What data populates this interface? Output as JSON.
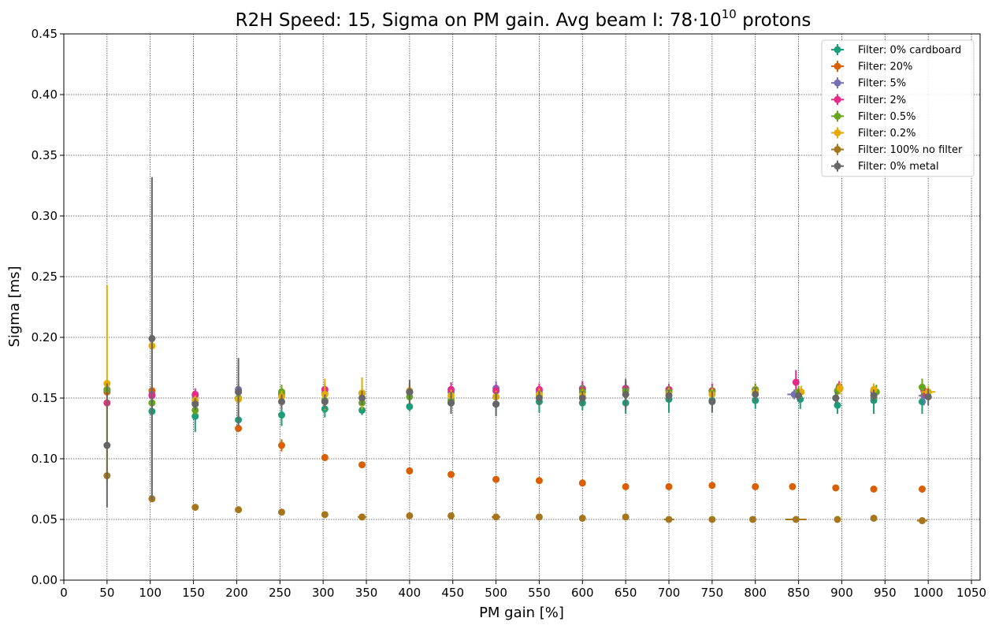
{
  "chart_data": {
    "type": "scatter",
    "title": {
      "main": "R2H Speed: 15, Sigma on PM gain. Avg beam I: 78·10",
      "superscript": "10",
      "suffix": " protons"
    },
    "xlabel": "PM gain [%]",
    "ylabel": "Sigma [ms]",
    "xlim": [
      0,
      1060
    ],
    "ylim": [
      0,
      0.45
    ],
    "xticks": [
      0,
      50,
      100,
      150,
      200,
      250,
      300,
      350,
      400,
      450,
      500,
      550,
      600,
      650,
      700,
      750,
      800,
      850,
      900,
      950,
      1000,
      1050
    ],
    "yticks": [
      0.0,
      0.05,
      0.1,
      0.15,
      0.2,
      0.25,
      0.3,
      0.35,
      0.4,
      0.45
    ],
    "grid": true,
    "legend_position": "top-right",
    "series": [
      {
        "name": "Filter: 0% cardboard",
        "color": "#1b9e77",
        "points": [
          {
            "x": 50,
            "y": 0.156,
            "yerr": 0.004
          },
          {
            "x": 102,
            "y": 0.139,
            "yerr": 0.003
          },
          {
            "x": 152,
            "y": 0.135,
            "yerr": 0.013
          },
          {
            "x": 202,
            "y": 0.132,
            "yerr": 0.01
          },
          {
            "x": 252,
            "y": 0.136,
            "yerr": 0.009
          },
          {
            "x": 302,
            "y": 0.141,
            "yerr": 0.007
          },
          {
            "x": 345,
            "y": 0.14,
            "yerr": 0.004
          },
          {
            "x": 400,
            "y": 0.143,
            "yerr": 0.004
          },
          {
            "x": 448,
            "y": 0.146,
            "yerr": 0.006
          },
          {
            "x": 500,
            "y": 0.145,
            "yerr": 0.009
          },
          {
            "x": 550,
            "y": 0.147,
            "yerr": 0.009
          },
          {
            "x": 600,
            "y": 0.146,
            "yerr": 0.006
          },
          {
            "x": 650,
            "y": 0.146,
            "yerr": 0.009
          },
          {
            "x": 700,
            "y": 0.149,
            "yerr": 0.011
          },
          {
            "x": 750,
            "y": 0.148,
            "yerr": 0.009
          },
          {
            "x": 800,
            "y": 0.148,
            "yerr": 0.007
          },
          {
            "x": 852,
            "y": 0.149,
            "yerr": 0.008
          },
          {
            "x": 895,
            "y": 0.144,
            "yerr": 0.007
          },
          {
            "x": 937,
            "y": 0.148,
            "yerr": 0.011
          },
          {
            "x": 993,
            "y": 0.147,
            "yerr": 0.01
          }
        ]
      },
      {
        "name": "Filter: 20%",
        "color": "#d95f02",
        "points": [
          {
            "x": 50,
            "y": 0.155,
            "yerr": 0.002
          },
          {
            "x": 102,
            "y": 0.156,
            "yerr": 0.002
          },
          {
            "x": 152,
            "y": 0.146,
            "yerr": 0.002
          },
          {
            "x": 202,
            "y": 0.125,
            "yerr": 0.003
          },
          {
            "x": 252,
            "y": 0.111,
            "yerr": 0.005
          },
          {
            "x": 302,
            "y": 0.101,
            "yerr": 0.003
          },
          {
            "x": 345,
            "y": 0.095,
            "yerr": 0.002
          },
          {
            "x": 400,
            "y": 0.09,
            "yerr": 0.002
          },
          {
            "x": 448,
            "y": 0.087,
            "yerr": 0.002
          },
          {
            "x": 500,
            "y": 0.083,
            "yerr": 0.002
          },
          {
            "x": 550,
            "y": 0.082,
            "yerr": 0.002
          },
          {
            "x": 600,
            "y": 0.08,
            "yerr": 0.002
          },
          {
            "x": 650,
            "y": 0.077,
            "yerr": 0.002
          },
          {
            "x": 700,
            "y": 0.077,
            "yerr": 0.002
          },
          {
            "x": 750,
            "y": 0.078,
            "yerr": 0.002
          },
          {
            "x": 800,
            "y": 0.077,
            "yerr": 0.002
          },
          {
            "x": 843,
            "y": 0.077,
            "yerr": 0.002
          },
          {
            "x": 893,
            "y": 0.076,
            "yerr": 0.002
          },
          {
            "x": 937,
            "y": 0.075,
            "yerr": 0.002
          },
          {
            "x": 993,
            "y": 0.075,
            "yerr": 0.003
          }
        ]
      },
      {
        "name": "Filter: 5%",
        "color": "#7570b3",
        "points": [
          {
            "x": 50,
            "y": 0.157,
            "yerr": 0.004
          },
          {
            "x": 102,
            "y": 0.153,
            "yerr": 0.004
          },
          {
            "x": 152,
            "y": 0.152,
            "yerr": 0.004
          },
          {
            "x": 202,
            "y": 0.157,
            "yerr": 0.005
          },
          {
            "x": 252,
            "y": 0.155,
            "yerr": 0.005
          },
          {
            "x": 302,
            "y": 0.154,
            "yerr": 0.008
          },
          {
            "x": 345,
            "y": 0.154,
            "yerr": 0.006
          },
          {
            "x": 400,
            "y": 0.155,
            "yerr": 0.007
          },
          {
            "x": 448,
            "y": 0.155,
            "yerr": 0.007
          },
          {
            "x": 500,
            "y": 0.158,
            "yerr": 0.006
          },
          {
            "x": 550,
            "y": 0.155,
            "yerr": 0.005
          },
          {
            "x": 600,
            "y": 0.158,
            "yerr": 0.006
          },
          {
            "x": 650,
            "y": 0.158,
            "yerr": 0.006
          },
          {
            "x": 700,
            "y": 0.157,
            "yerr": 0.005
          },
          {
            "x": 750,
            "y": 0.156,
            "yerr": 0.005
          },
          {
            "x": 800,
            "y": 0.157,
            "yerr": 0.005
          },
          {
            "x": 845,
            "y": 0.153,
            "yerr": 0.004,
            "xerr": 8
          },
          {
            "x": 897,
            "y": 0.158,
            "yerr": 0.005
          },
          {
            "x": 937,
            "y": 0.155,
            "yerr": 0.005
          },
          {
            "x": 995,
            "y": 0.152,
            "yerr": 0.008,
            "xerr": 6
          }
        ]
      },
      {
        "name": "Filter: 2%",
        "color": "#e7298a",
        "points": [
          {
            "x": 50,
            "y": 0.146,
            "yerr": 0.004
          },
          {
            "x": 102,
            "y": 0.152,
            "yerr": 0.004
          },
          {
            "x": 152,
            "y": 0.153,
            "yerr": 0.005
          },
          {
            "x": 202,
            "y": 0.155,
            "yerr": 0.005
          },
          {
            "x": 252,
            "y": 0.153,
            "yerr": 0.005
          },
          {
            "x": 302,
            "y": 0.157,
            "yerr": 0.005
          },
          {
            "x": 345,
            "y": 0.154,
            "yerr": 0.005
          },
          {
            "x": 400,
            "y": 0.155,
            "yerr": 0.005
          },
          {
            "x": 448,
            "y": 0.157,
            "yerr": 0.006
          },
          {
            "x": 500,
            "y": 0.156,
            "yerr": 0.005
          },
          {
            "x": 550,
            "y": 0.157,
            "yerr": 0.005
          },
          {
            "x": 600,
            "y": 0.157,
            "yerr": 0.007
          },
          {
            "x": 650,
            "y": 0.158,
            "yerr": 0.006
          },
          {
            "x": 700,
            "y": 0.157,
            "yerr": 0.004
          },
          {
            "x": 750,
            "y": 0.156,
            "yerr": 0.006
          },
          {
            "x": 800,
            "y": 0.157,
            "yerr": 0.005
          },
          {
            "x": 847,
            "y": 0.163,
            "yerr": 0.01
          },
          {
            "x": 897,
            "y": 0.159,
            "yerr": 0.005
          },
          {
            "x": 937,
            "y": 0.156,
            "yerr": 0.005
          },
          {
            "x": 995,
            "y": 0.156,
            "yerr": 0.005
          }
        ]
      },
      {
        "name": "Filter: 0.5%",
        "color": "#66a61e",
        "points": [
          {
            "x": 50,
            "y": 0.157,
            "yerr": 0.004
          },
          {
            "x": 102,
            "y": 0.146,
            "yerr": 0.004
          },
          {
            "x": 152,
            "y": 0.14,
            "yerr": 0.004
          },
          {
            "x": 202,
            "y": 0.15,
            "yerr": 0.005
          },
          {
            "x": 252,
            "y": 0.155,
            "yerr": 0.006
          },
          {
            "x": 302,
            "y": 0.148,
            "yerr": 0.007
          },
          {
            "x": 345,
            "y": 0.146,
            "yerr": 0.006
          },
          {
            "x": 400,
            "y": 0.151,
            "yerr": 0.006
          },
          {
            "x": 448,
            "y": 0.148,
            "yerr": 0.006
          },
          {
            "x": 500,
            "y": 0.151,
            "yerr": 0.005
          },
          {
            "x": 550,
            "y": 0.152,
            "yerr": 0.006
          },
          {
            "x": 600,
            "y": 0.155,
            "yerr": 0.006
          },
          {
            "x": 650,
            "y": 0.156,
            "yerr": 0.006
          },
          {
            "x": 700,
            "y": 0.155,
            "yerr": 0.005
          },
          {
            "x": 750,
            "y": 0.155,
            "yerr": 0.005
          },
          {
            "x": 800,
            "y": 0.157,
            "yerr": 0.005
          },
          {
            "x": 850,
            "y": 0.155,
            "yerr": 0.005
          },
          {
            "x": 895,
            "y": 0.156,
            "yerr": 0.006
          },
          {
            "x": 940,
            "y": 0.155,
            "yerr": 0.006
          },
          {
            "x": 993,
            "y": 0.159,
            "yerr": 0.007
          }
        ]
      },
      {
        "name": "Filter: 0.2%",
        "color": "#e6ab02",
        "points": [
          {
            "x": 50,
            "y": 0.162,
            "yerr": 0.081
          },
          {
            "x": 102,
            "y": 0.193,
            "yerr": 0.116
          },
          {
            "x": 152,
            "y": 0.148,
            "yerr": 0.004
          },
          {
            "x": 202,
            "y": 0.149,
            "yerr": 0.005
          },
          {
            "x": 252,
            "y": 0.151,
            "yerr": 0.005
          },
          {
            "x": 302,
            "y": 0.153,
            "yerr": 0.013
          },
          {
            "x": 345,
            "y": 0.154,
            "yerr": 0.013
          },
          {
            "x": 400,
            "y": 0.156,
            "yerr": 0.005
          },
          {
            "x": 448,
            "y": 0.152,
            "yerr": 0.005
          },
          {
            "x": 500,
            "y": 0.151,
            "yerr": 0.005
          },
          {
            "x": 550,
            "y": 0.153,
            "yerr": 0.005
          },
          {
            "x": 600,
            "y": 0.152,
            "yerr": 0.005
          },
          {
            "x": 650,
            "y": 0.153,
            "yerr": 0.005
          },
          {
            "x": 700,
            "y": 0.153,
            "yerr": 0.005
          },
          {
            "x": 750,
            "y": 0.153,
            "yerr": 0.005
          },
          {
            "x": 800,
            "y": 0.155,
            "yerr": 0.005
          },
          {
            "x": 853,
            "y": 0.155,
            "yerr": 0.005
          },
          {
            "x": 898,
            "y": 0.158,
            "yerr": 0.005
          },
          {
            "x": 937,
            "y": 0.157,
            "yerr": 0.005
          },
          {
            "x": 1000,
            "y": 0.155,
            "yerr": 0.005,
            "xerr": 8
          }
        ]
      },
      {
        "name": "Filter: 100% no filter",
        "color": "#a6761d",
        "points": [
          {
            "x": 50,
            "y": 0.086,
            "yerr": 0.002
          },
          {
            "x": 102,
            "y": 0.067,
            "yerr": 0.002
          },
          {
            "x": 152,
            "y": 0.06,
            "yerr": 0.002
          },
          {
            "x": 202,
            "y": 0.058,
            "yerr": 0.002
          },
          {
            "x": 252,
            "y": 0.056,
            "yerr": 0.002
          },
          {
            "x": 302,
            "y": 0.054,
            "yerr": 0.002
          },
          {
            "x": 345,
            "y": 0.052,
            "yerr": 0.002,
            "xerr": 5
          },
          {
            "x": 400,
            "y": 0.053,
            "yerr": 0.002
          },
          {
            "x": 448,
            "y": 0.053,
            "yerr": 0.002
          },
          {
            "x": 500,
            "y": 0.052,
            "yerr": 0.002,
            "xerr": 5
          },
          {
            "x": 550,
            "y": 0.052,
            "yerr": 0.002
          },
          {
            "x": 600,
            "y": 0.051,
            "yerr": 0.002
          },
          {
            "x": 650,
            "y": 0.052,
            "yerr": 0.002
          },
          {
            "x": 700,
            "y": 0.05,
            "yerr": 0.002,
            "xerr": 6
          },
          {
            "x": 750,
            "y": 0.05,
            "yerr": 0.002
          },
          {
            "x": 797,
            "y": 0.05,
            "yerr": 0.002
          },
          {
            "x": 847,
            "y": 0.05,
            "yerr": 0.002,
            "xerr": 12
          },
          {
            "x": 895,
            "y": 0.05,
            "yerr": 0.002
          },
          {
            "x": 937,
            "y": 0.051,
            "yerr": 0.002
          },
          {
            "x": 993,
            "y": 0.049,
            "yerr": 0.002,
            "xerr": 6
          }
        ]
      },
      {
        "name": "Filter: 0% metal",
        "color": "#666666",
        "points": [
          {
            "x": 50,
            "y": 0.111,
            "yerr": 0.051
          },
          {
            "x": 102,
            "y": 0.199,
            "yerr": 0.133
          },
          {
            "x": 152,
            "y": 0.145,
            "yerr": 0.005
          },
          {
            "x": 202,
            "y": 0.155,
            "yerr": 0.028
          },
          {
            "x": 252,
            "y": 0.147,
            "yerr": 0.006
          },
          {
            "x": 302,
            "y": 0.147,
            "yerr": 0.006
          },
          {
            "x": 345,
            "y": 0.15,
            "yerr": 0.006
          },
          {
            "x": 400,
            "y": 0.155,
            "yerr": 0.01
          },
          {
            "x": 448,
            "y": 0.146,
            "yerr": 0.009
          },
          {
            "x": 500,
            "y": 0.145,
            "yerr": 0.01
          },
          {
            "x": 550,
            "y": 0.15,
            "yerr": 0.006
          },
          {
            "x": 600,
            "y": 0.15,
            "yerr": 0.006
          },
          {
            "x": 650,
            "y": 0.153,
            "yerr": 0.013
          },
          {
            "x": 700,
            "y": 0.152,
            "yerr": 0.005
          },
          {
            "x": 750,
            "y": 0.147,
            "yerr": 0.009
          },
          {
            "x": 800,
            "y": 0.153,
            "yerr": 0.006
          },
          {
            "x": 850,
            "y": 0.152,
            "yerr": 0.005
          },
          {
            "x": 893,
            "y": 0.15,
            "yerr": 0.005
          },
          {
            "x": 937,
            "y": 0.152,
            "yerr": 0.005
          },
          {
            "x": 1000,
            "y": 0.151,
            "yerr": 0.007,
            "xerr": 4
          }
        ]
      }
    ]
  }
}
